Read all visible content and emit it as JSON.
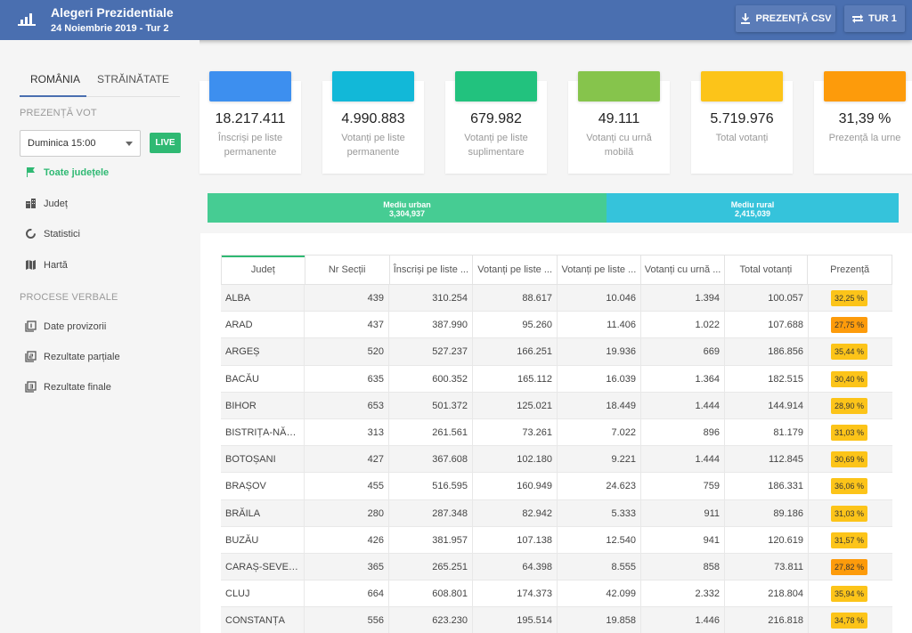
{
  "header": {
    "title": "Alegeri Prezidentiale",
    "subtitle": "24 Noiembrie 2019 - Tur 2",
    "csv_button": "PREZENȚĂ CSV",
    "round_button": "TUR 1"
  },
  "sidebar": {
    "tabs": [
      "ROMÂNIA",
      "STRĂINĂTATE"
    ],
    "section_vote": "PREZENȚĂ VOT",
    "time_select": "Duminica 15:00",
    "live": "LIVE",
    "nav": [
      "Toate județele",
      "Județ",
      "Statistici",
      "Hartă"
    ],
    "section_pv": "PROCESE VERBALE",
    "pv": [
      "Date provizorii",
      "Rezultate parțiale",
      "Rezultate finale"
    ]
  },
  "cards": [
    {
      "value": "18.217.411",
      "label": "Înscriși pe liste permanente",
      "color": "#3d8fef"
    },
    {
      "value": "4.990.883",
      "label": "Votanți pe liste permanente",
      "color": "#12b8d8"
    },
    {
      "value": "679.982",
      "label": "Votanți pe liste suplimentare",
      "color": "#22c27e"
    },
    {
      "value": "49.111",
      "label": "Votanți cu urnă mobilă",
      "color": "#86c44c"
    },
    {
      "value": "5.719.976",
      "label": "Total votanți",
      "color": "#fcc419"
    },
    {
      "value": "31,39 %",
      "label": "Prezență la urne",
      "color": "#fd9b0b"
    }
  ],
  "env": {
    "urban_label": "Mediu urban",
    "urban_value": "3,304,937",
    "rural_label": "Mediu rural",
    "rural_value": "2,415,039"
  },
  "table": {
    "columns": [
      "Județ",
      "Nr Secții",
      "Înscriși pe liste ...",
      "Votanți pe liste ...",
      "Votanți pe liste ...",
      "Votanți cu urnă ...",
      "Total votanți",
      "Prezență"
    ],
    "rows": [
      [
        "ALBA",
        "439",
        "310.254",
        "88.617",
        "10.046",
        "1.394",
        "100.057",
        "32,25 %"
      ],
      [
        "ARAD",
        "437",
        "387.990",
        "95.260",
        "11.406",
        "1.022",
        "107.688",
        "27,75 %"
      ],
      [
        "ARGEȘ",
        "520",
        "527.237",
        "166.251",
        "19.936",
        "669",
        "186.856",
        "35,44 %"
      ],
      [
        "BACĂU",
        "635",
        "600.352",
        "165.112",
        "16.039",
        "1.364",
        "182.515",
        "30,40 %"
      ],
      [
        "BIHOR",
        "653",
        "501.372",
        "125.021",
        "18.449",
        "1.444",
        "144.914",
        "28,90 %"
      ],
      [
        "BISTRIȚA-NĂS...",
        "313",
        "261.561",
        "73.261",
        "7.022",
        "896",
        "81.179",
        "31,03 %"
      ],
      [
        "BOTOȘANI",
        "427",
        "367.608",
        "102.180",
        "9.221",
        "1.444",
        "112.845",
        "30,69 %"
      ],
      [
        "BRAȘOV",
        "455",
        "516.595",
        "160.949",
        "24.623",
        "759",
        "186.331",
        "36,06 %"
      ],
      [
        "BRĂILA",
        "280",
        "287.348",
        "82.942",
        "5.333",
        "911",
        "89.186",
        "31,03 %"
      ],
      [
        "BUZĂU",
        "426",
        "381.957",
        "107.138",
        "12.540",
        "941",
        "120.619",
        "31,57 %"
      ],
      [
        "CARAȘ-SEVERIN",
        "365",
        "265.251",
        "64.398",
        "8.555",
        "858",
        "73.811",
        "27,82 %"
      ],
      [
        "CLUJ",
        "664",
        "608.801",
        "174.373",
        "42.099",
        "2.332",
        "218.804",
        "35,94 %"
      ],
      [
        "CONSTANȚA",
        "556",
        "623.230",
        "195.514",
        "19.858",
        "1.446",
        "216.818",
        "34,78 %"
      ]
    ],
    "badge_colors": [
      "#fcc419",
      "#fd9b0b",
      "#fcc419",
      "#fcc419",
      "#fcc419",
      "#fcc419",
      "#fcc419",
      "#fcc419",
      "#fcc419",
      "#fcc419",
      "#fd9b0b",
      "#fcc419",
      "#fcc419"
    ]
  }
}
